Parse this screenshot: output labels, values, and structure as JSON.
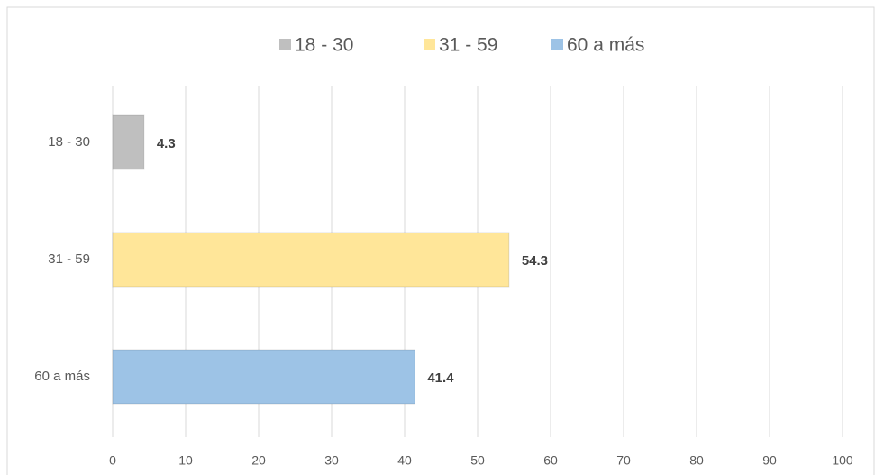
{
  "chart_data": {
    "type": "bar",
    "orientation": "horizontal",
    "categories": [
      "18 - 30",
      "31 - 59",
      "60 a más"
    ],
    "series": [
      {
        "name": "18 - 30",
        "color": "#bfbfbf",
        "values": [
          4.3,
          null,
          null
        ]
      },
      {
        "name": "31 - 59",
        "color": "#ffe699",
        "values": [
          null,
          54.3,
          null
        ]
      },
      {
        "name": "60 a más",
        "color": "#9dc3e6",
        "values": [
          null,
          null,
          41.4
        ]
      }
    ],
    "xlim": [
      0,
      100
    ],
    "xticks": [
      0,
      10,
      20,
      30,
      40,
      50,
      60,
      70,
      80,
      90,
      100
    ],
    "grid": true,
    "legend": "top"
  }
}
